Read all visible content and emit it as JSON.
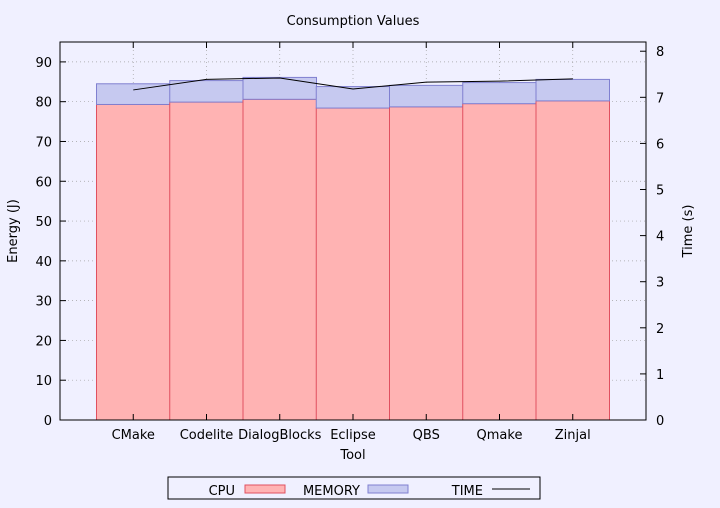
{
  "chart_data": {
    "type": "bar",
    "title": "Consumption Values",
    "xlabel": "Tool",
    "ylabel": "Energy (J)",
    "y2label": "Time (s)",
    "categories": [
      "CMake",
      "Codelite",
      "DialogBlocks",
      "Eclipse",
      "QBS",
      "Qmake",
      "Zinjal"
    ],
    "ylim": [
      0,
      95
    ],
    "y2lim": [
      0,
      8.2
    ],
    "yticks": [
      0,
      10,
      20,
      30,
      40,
      50,
      60,
      70,
      80,
      90
    ],
    "y2ticks": [
      0,
      1,
      2,
      3,
      4,
      5,
      6,
      7,
      8
    ],
    "grid": true,
    "stacked": true,
    "legend_position": "bottom",
    "series": [
      {
        "name": "CPU",
        "kind": "bar",
        "color": "#ffb3b3",
        "edge": "#e05060",
        "values": [
          79.3,
          79.9,
          80.6,
          78.4,
          78.7,
          79.5,
          80.2
        ]
      },
      {
        "name": "MEMORY",
        "kind": "bar",
        "color": "#c6c9f0",
        "edge": "#8080d0",
        "values": [
          5.2,
          5.4,
          5.5,
          5.4,
          5.4,
          5.3,
          5.4
        ]
      },
      {
        "name": "TIME",
        "kind": "line",
        "axis": "right",
        "color": "#000000",
        "values": [
          7.16,
          7.39,
          7.42,
          7.18,
          7.33,
          7.35,
          7.4
        ]
      }
    ]
  }
}
